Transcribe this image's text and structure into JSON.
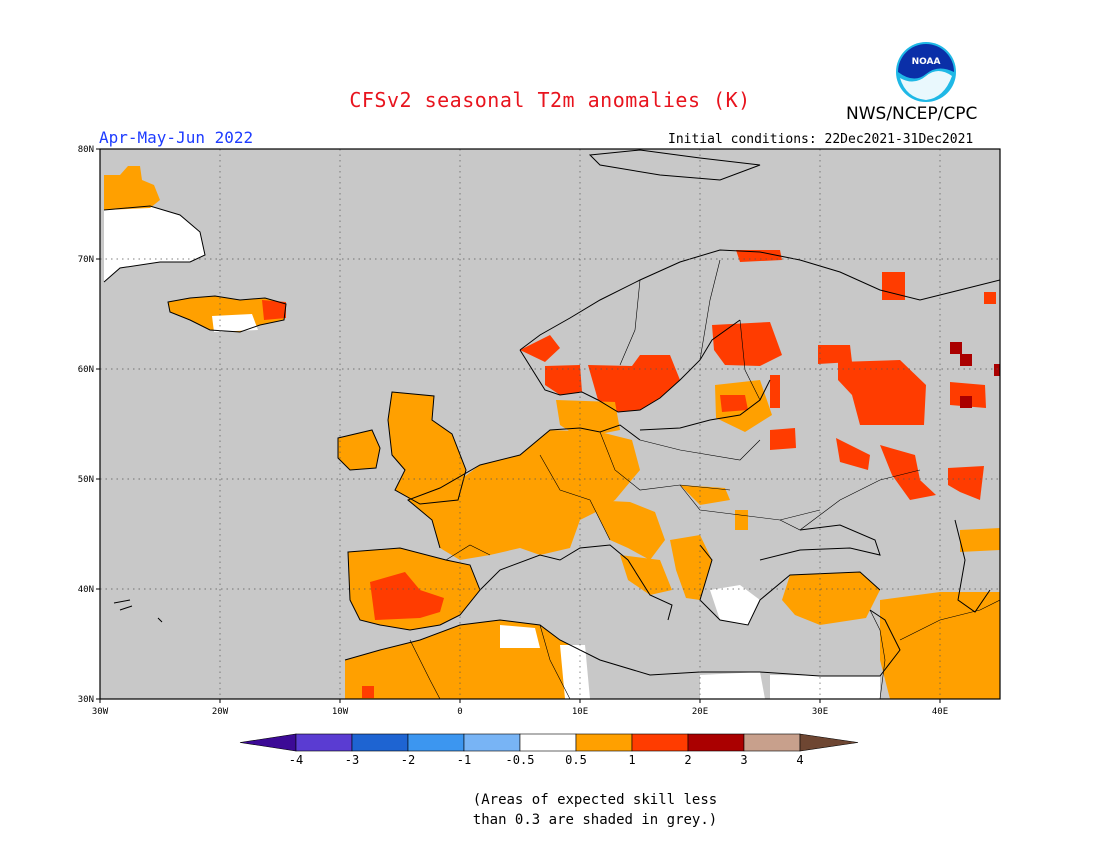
{
  "header": {
    "title": "CFSv2 seasonal T2m anomalies (K)",
    "organization": "NWS/NCEP/CPC",
    "logo_text": "NOAA",
    "season": "Apr-May-Jun 2022",
    "initial_conditions": "Initial conditions: 22Dec2021-31Dec2021"
  },
  "map": {
    "projection": "cylindrical",
    "lon_range": [
      -30,
      45
    ],
    "lat_range": [
      30,
      80
    ],
    "x_ticks": [
      "30W",
      "20W",
      "10W",
      "0",
      "10E",
      "20E",
      "30E",
      "40E"
    ],
    "y_ticks": [
      "30N",
      "40N",
      "50N",
      "60N",
      "70N",
      "80N"
    ],
    "grid": "dotted",
    "background_color": "#c8c8c8",
    "grey_meaning": "low skill (< 0.3)"
  },
  "legend": {
    "labels": [
      "-4",
      "-3",
      "-2",
      "-1",
      "-0.5",
      "0.5",
      "1",
      "2",
      "3",
      "4"
    ],
    "colors": {
      "below_-4": "#3c0a96",
      "-4_-3": "#5a3cd2",
      "-3_-2": "#1e64d2",
      "-2_-1": "#3c96f0",
      "-1_-0.5": "#78b4f5",
      "-0.5_0.5": "#ffffff",
      "0.5_1": "#ffa000",
      "1_2": "#ff3c00",
      "2_3": "#aa0000",
      "3_4": "#c8a08c",
      "above_4": "#6e4632"
    }
  },
  "footnote": {
    "line1": "(Areas of expected skill less",
    "line2": "than 0.3 are shaded in grey.)"
  }
}
